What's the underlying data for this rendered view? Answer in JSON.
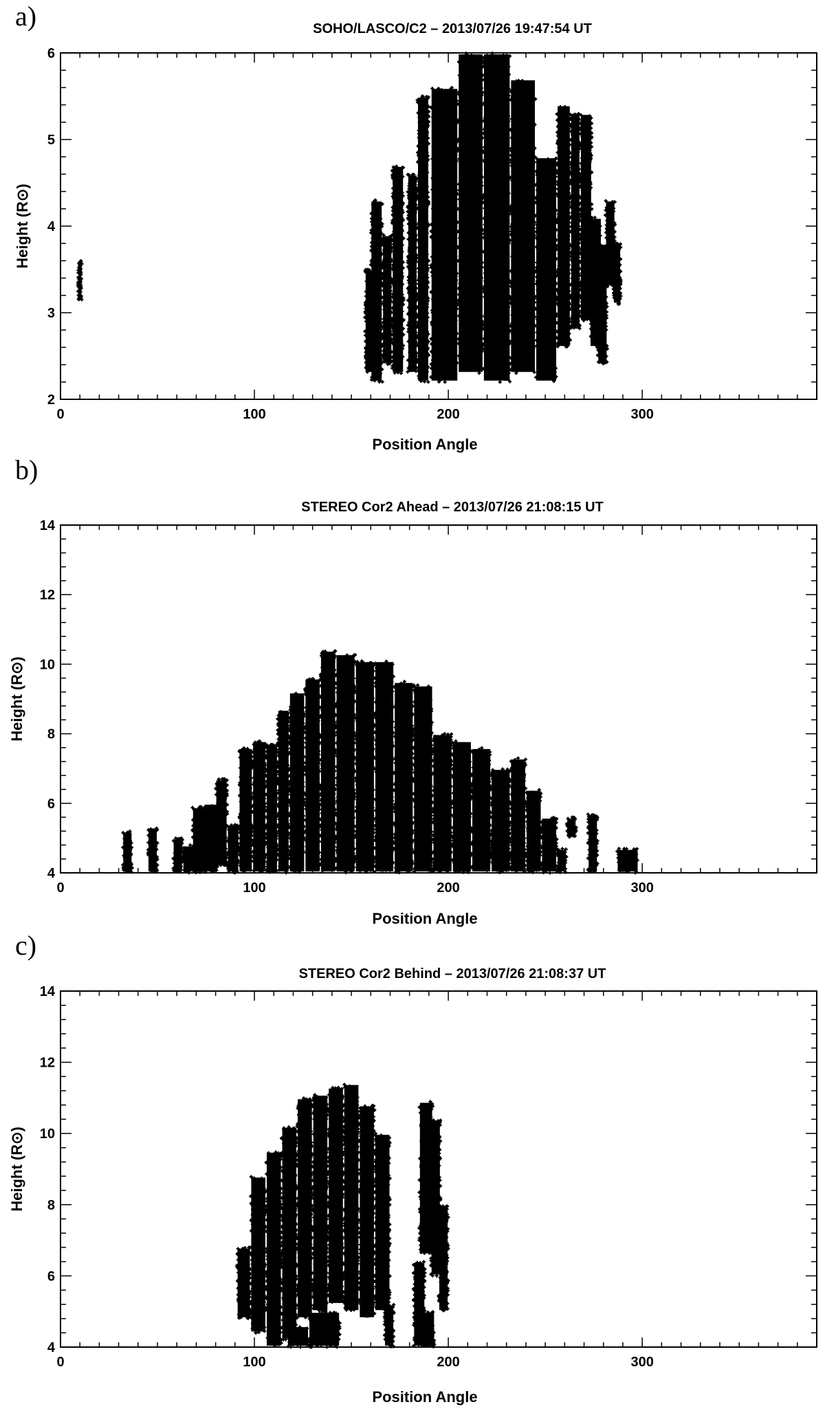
{
  "panels": [
    {
      "letter": "a)"
    },
    {
      "letter": "b)"
    },
    {
      "letter": "c)"
    }
  ],
  "chart_data": [
    {
      "type": "scatter",
      "title": "SOHO/LASCO/C2 – 2013/07/26 19:47:54 UT",
      "xlabel": "Position Angle",
      "ylabel": "Height (R⊙)",
      "xlim": [
        0,
        390
      ],
      "ylim": [
        2,
        6
      ],
      "xticks": [
        0,
        100,
        200,
        300
      ],
      "yticks": [
        2,
        3,
        4,
        5,
        6
      ],
      "grid": false,
      "marker_color": "#000000",
      "regions": [
        {
          "x": [
            9,
            11
          ],
          "y": [
            3.15,
            3.6
          ]
        },
        {
          "x": [
            157,
            162
          ],
          "y": [
            2.3,
            3.5
          ]
        },
        {
          "x": [
            160,
            166
          ],
          "y": [
            2.2,
            4.3
          ]
        },
        {
          "x": [
            166,
            171
          ],
          "y": [
            2.4,
            3.9
          ]
        },
        {
          "x": [
            171,
            177
          ],
          "y": [
            2.3,
            4.7
          ]
        },
        {
          "x": [
            179,
            184
          ],
          "y": [
            2.3,
            4.6
          ]
        },
        {
          "x": [
            184,
            190
          ],
          "y": [
            2.2,
            5.5
          ]
        },
        {
          "x": [
            191,
            205
          ],
          "y": [
            2.2,
            5.6
          ]
        },
        {
          "x": [
            205,
            218
          ],
          "y": [
            2.3,
            6.0
          ]
        },
        {
          "x": [
            218,
            232
          ],
          "y": [
            2.2,
            6.0
          ]
        },
        {
          "x": [
            232,
            245
          ],
          "y": [
            2.3,
            5.7
          ]
        },
        {
          "x": [
            245,
            256
          ],
          "y": [
            2.2,
            4.8
          ]
        },
        {
          "x": [
            256,
            263
          ],
          "y": [
            2.6,
            5.4
          ]
        },
        {
          "x": [
            263,
            268
          ],
          "y": [
            2.8,
            5.3
          ]
        },
        {
          "x": [
            268,
            274
          ],
          "y": [
            2.9,
            5.3
          ]
        },
        {
          "x": [
            273,
            279
          ],
          "y": [
            2.6,
            4.1
          ]
        },
        {
          "x": [
            277,
            282
          ],
          "y": [
            2.4,
            3.8
          ]
        },
        {
          "x": [
            281,
            286
          ],
          "y": [
            3.3,
            4.3
          ]
        },
        {
          "x": [
            285,
            289
          ],
          "y": [
            3.1,
            3.8
          ]
        }
      ]
    },
    {
      "type": "scatter",
      "title": "STEREO Cor2 Ahead – 2013/07/26  21:08:15 UT",
      "xlabel": "Position Angle",
      "ylabel": "Height (R⊙)",
      "xlim": [
        0,
        390
      ],
      "ylim": [
        4,
        14
      ],
      "xticks": [
        0,
        100,
        200,
        300
      ],
      "yticks": [
        4,
        6,
        8,
        10,
        12,
        14
      ],
      "grid": false,
      "marker_color": "#000000",
      "regions": [
        {
          "x": [
            32,
            37
          ],
          "y": [
            4.0,
            5.2
          ]
        },
        {
          "x": [
            45,
            50
          ],
          "y": [
            4.0,
            5.3
          ]
        },
        {
          "x": [
            58,
            63
          ],
          "y": [
            4.0,
            5.0
          ]
        },
        {
          "x": [
            63,
            70
          ],
          "y": [
            4.0,
            4.8
          ]
        },
        {
          "x": [
            68,
            76
          ],
          "y": [
            4.0,
            5.9
          ]
        },
        {
          "x": [
            74,
            81
          ],
          "y": [
            4.0,
            6.0
          ]
        },
        {
          "x": [
            80,
            86
          ],
          "y": [
            4.2,
            6.7
          ]
        },
        {
          "x": [
            86,
            92
          ],
          "y": [
            4.0,
            5.4
          ]
        },
        {
          "x": [
            92,
            99
          ],
          "y": [
            4.0,
            7.6
          ]
        },
        {
          "x": [
            99,
            106
          ],
          "y": [
            4.0,
            7.8
          ]
        },
        {
          "x": [
            106,
            112
          ],
          "y": [
            4.0,
            7.7
          ]
        },
        {
          "x": [
            112,
            118
          ],
          "y": [
            4.0,
            8.7
          ]
        },
        {
          "x": [
            118,
            126
          ],
          "y": [
            4.0,
            9.2
          ]
        },
        {
          "x": [
            126,
            134
          ],
          "y": [
            4.0,
            9.6
          ]
        },
        {
          "x": [
            134,
            142
          ],
          "y": [
            4.0,
            10.4
          ]
        },
        {
          "x": [
            142,
            152
          ],
          "y": [
            4.0,
            10.3
          ]
        },
        {
          "x": [
            152,
            162
          ],
          "y": [
            4.0,
            10.1
          ]
        },
        {
          "x": [
            162,
            172
          ],
          "y": [
            4.0,
            10.1
          ]
        },
        {
          "x": [
            172,
            182
          ],
          "y": [
            4.0,
            9.5
          ]
        },
        {
          "x": [
            182,
            192
          ],
          "y": [
            4.0,
            9.4
          ]
        },
        {
          "x": [
            192,
            202
          ],
          "y": [
            4.0,
            8.0
          ]
        },
        {
          "x": [
            202,
            212
          ],
          "y": [
            4.0,
            7.8
          ]
        },
        {
          "x": [
            212,
            222
          ],
          "y": [
            4.0,
            7.6
          ]
        },
        {
          "x": [
            222,
            232
          ],
          "y": [
            4.0,
            7.0
          ]
        },
        {
          "x": [
            232,
            240
          ],
          "y": [
            4.0,
            7.3
          ]
        },
        {
          "x": [
            240,
            248
          ],
          "y": [
            4.0,
            6.4
          ]
        },
        {
          "x": [
            248,
            256
          ],
          "y": [
            4.0,
            5.6
          ]
        },
        {
          "x": [
            256,
            261
          ],
          "y": [
            4.0,
            4.7
          ]
        },
        {
          "x": [
            261,
            266
          ],
          "y": [
            5.0,
            5.6
          ]
        },
        {
          "x": [
            272,
            277
          ],
          "y": [
            4.0,
            5.7
          ]
        },
        {
          "x": [
            287,
            298
          ],
          "y": [
            4.0,
            4.7
          ]
        }
      ]
    },
    {
      "type": "scatter",
      "title": "STEREO Cor2 Behind  – 2013/07/26  21:08:37 UT",
      "xlabel": "Position Angle",
      "ylabel": "Height (R⊙)",
      "xlim": [
        0,
        390
      ],
      "ylim": [
        4,
        14
      ],
      "xticks": [
        0,
        100,
        200,
        300
      ],
      "yticks": [
        4,
        6,
        8,
        10,
        12,
        14
      ],
      "grid": false,
      "marker_color": "#000000",
      "regions": [
        {
          "x": [
            91,
            98
          ],
          "y": [
            4.8,
            6.8
          ]
        },
        {
          "x": [
            98,
            106
          ],
          "y": [
            4.4,
            8.8
          ]
        },
        {
          "x": [
            106,
            114
          ],
          "y": [
            4.0,
            9.5
          ]
        },
        {
          "x": [
            114,
            122
          ],
          "y": [
            4.2,
            10.2
          ]
        },
        {
          "x": [
            122,
            130
          ],
          "y": [
            4.8,
            11.0
          ]
        },
        {
          "x": [
            130,
            138
          ],
          "y": [
            5.0,
            11.1
          ]
        },
        {
          "x": [
            138,
            146
          ],
          "y": [
            5.2,
            11.3
          ]
        },
        {
          "x": [
            146,
            154
          ],
          "y": [
            5.0,
            11.4
          ]
        },
        {
          "x": [
            154,
            162
          ],
          "y": [
            4.8,
            10.8
          ]
        },
        {
          "x": [
            162,
            170
          ],
          "y": [
            5.0,
            10.0
          ]
        },
        {
          "x": [
            117,
            128
          ],
          "y": [
            4.0,
            4.6
          ]
        },
        {
          "x": [
            128,
            144
          ],
          "y": [
            4.0,
            5.0
          ]
        },
        {
          "x": [
            167,
            172
          ],
          "y": [
            4.0,
            5.2
          ]
        },
        {
          "x": [
            182,
            188
          ],
          "y": [
            4.0,
            6.4
          ]
        },
        {
          "x": [
            187,
            193
          ],
          "y": [
            4.0,
            5.0
          ]
        },
        {
          "x": [
            185,
            192
          ],
          "y": [
            6.6,
            10.9
          ]
        },
        {
          "x": [
            191,
            196
          ],
          "y": [
            6.0,
            10.4
          ]
        },
        {
          "x": [
            195,
            200
          ],
          "y": [
            5.0,
            8.0
          ]
        }
      ]
    }
  ]
}
